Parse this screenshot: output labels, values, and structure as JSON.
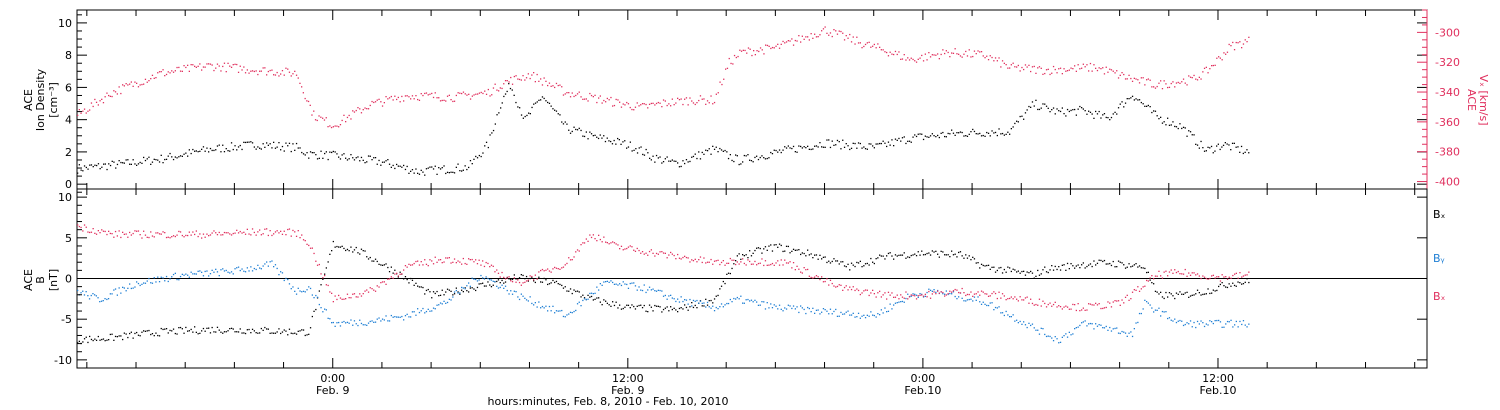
{
  "colors": {
    "black": "#000000",
    "pink": "#e0305e",
    "blue": "#1f7fd4"
  },
  "x_axis": {
    "label": "hours:minutes, Feb.  8, 2010 - Feb. 10, 2010",
    "ticks": [
      {
        "time": "0:00",
        "date": "Feb. 9",
        "hour": 24
      },
      {
        "time": "12:00",
        "date": "Feb. 9",
        "hour": 36
      },
      {
        "time": "0:00",
        "date": "Feb.10",
        "hour": 48
      },
      {
        "time": "12:00",
        "date": "Feb.10",
        "hour": 60
      }
    ]
  },
  "chart_data": [
    {
      "type": "scatter",
      "panel": "top",
      "ylabel_lines": [
        "ACE",
        "Ion Density",
        "[cm⁻³]"
      ],
      "y2label_lines": [
        "ACE",
        "Vₓ [km/s]"
      ],
      "xlim_hours": [
        13.6,
        68.5
      ],
      "ylim": [
        -0.3,
        10.8
      ],
      "yticks": [
        0,
        2,
        4,
        6,
        8,
        10
      ],
      "y2lim": [
        -405,
        -285
      ],
      "y2ticks": [
        -400,
        -380,
        -360,
        -340,
        -320,
        -300
      ],
      "series": [
        {
          "axis": "left",
          "color": "black",
          "x": [
            13.6,
            15.5,
            17,
            19,
            21,
            22.5,
            23,
            24,
            26,
            27.5,
            29.5,
            30.3,
            30.8,
            31.2,
            31.8,
            32.5,
            33.5,
            34.5,
            35.7,
            36.3,
            37,
            38,
            39.5,
            40.5,
            42,
            43,
            44,
            46,
            47.5,
            49.5,
            51.5,
            52.5,
            53.5,
            54.5,
            55.5,
            56.5,
            57.5,
            58.5,
            59.5,
            60.2,
            61.3
          ],
          "values": [
            1.0,
            1.3,
            1.6,
            2.2,
            2.5,
            2.3,
            1.9,
            1.8,
            1.4,
            0.8,
            1.1,
            2.5,
            5.0,
            6.2,
            4.0,
            5.5,
            3.5,
            3.0,
            2.6,
            2.3,
            1.7,
            1.3,
            2.2,
            1.5,
            2.0,
            2.3,
            2.6,
            2.3,
            2.9,
            3.2,
            3.3,
            5.0,
            4.5,
            4.6,
            4.1,
            5.6,
            4.2,
            3.6,
            2.1,
            2.5,
            2.0
          ]
        },
        {
          "axis": "right",
          "color": "pink",
          "x": [
            13.6,
            15,
            17,
            19,
            21,
            22.5,
            23.2,
            24,
            25.5,
            27,
            29,
            30.3,
            31,
            32,
            33.5,
            35,
            36.5,
            37.5,
            38.5,
            39.5,
            40.1,
            40.6,
            42,
            44,
            45.5,
            46.5,
            47.5,
            49,
            50.5,
            51.5,
            53,
            55,
            56.5,
            57.5,
            59,
            59.5,
            60.5,
            61.3
          ],
          "values": [
            -355,
            -340,
            -327,
            -322,
            -325,
            -327,
            -355,
            -362,
            -348,
            -342,
            -343,
            -340,
            -333,
            -328,
            -340,
            -345,
            -350,
            -347,
            -345,
            -345,
            -320,
            -313,
            -310,
            -298,
            -307,
            -312,
            -318,
            -313,
            -315,
            -323,
            -325,
            -323,
            -331,
            -335,
            -331,
            -326,
            -309,
            -305
          ]
        }
      ]
    },
    {
      "type": "scatter",
      "panel": "bottom",
      "ylabel_lines": [
        "ACE",
        "B",
        "[nT]"
      ],
      "xlim_hours": [
        13.6,
        68.5
      ],
      "ylim": [
        -11,
        11
      ],
      "yticks": [
        -10,
        -5,
        0,
        5,
        10
      ],
      "zero_line": true,
      "series": [
        {
          "name": "Bₓ",
          "color": "black",
          "x": [
            13.6,
            15,
            17,
            19,
            21,
            22.5,
            23,
            24,
            25,
            26.5,
            28,
            29,
            30.5,
            31.5,
            33,
            34.5,
            36,
            38,
            39.5,
            40.5,
            42,
            43.5,
            45,
            46.5,
            48,
            49.5,
            50.5,
            52.5,
            53,
            54.5,
            55.5,
            57,
            57.5,
            58.5,
            59.5,
            60.5,
            61.3
          ],
          "values": [
            -7.5,
            -7.2,
            -6.5,
            -6.2,
            -6.3,
            -6.5,
            -6.5,
            4.3,
            3.5,
            1,
            -2,
            -1.5,
            -0.5,
            0.2,
            -0.5,
            -2.5,
            -3.5,
            -3.8,
            -2.5,
            2.8,
            4.0,
            3.0,
            1.5,
            2.8,
            3.2,
            3,
            1.5,
            0.5,
            1.2,
            1.8,
            2.0,
            1.5,
            -2.0,
            -2.0,
            -1.5,
            -0.5,
            -0.3
          ]
        },
        {
          "name": "Bᵧ",
          "color": "blue",
          "x": [
            13.6,
            14.5,
            16,
            18,
            20,
            21.5,
            22.5,
            23,
            24,
            25.5,
            27,
            28.5,
            30,
            31.5,
            33.5,
            35,
            36.5,
            38,
            39.5,
            40.5,
            42,
            44,
            46,
            47.5,
            48.5,
            50.5,
            52.5,
            53.5,
            54.5,
            55.5,
            56.5,
            57,
            58.5,
            60,
            61.3
          ],
          "values": [
            -1.5,
            -2.5,
            -0.5,
            0.5,
            1,
            1.8,
            -1.5,
            -1.0,
            -5.5,
            -5.2,
            -4.5,
            -3.0,
            0.5,
            -2.0,
            -4.5,
            -0.5,
            -1.0,
            -2.5,
            -3.5,
            -2.5,
            -3.5,
            -4.0,
            -4.5,
            -2.0,
            -1.5,
            -2.8,
            -6.0,
            -7.5,
            -5.5,
            -6.0,
            -6.8,
            -3.0,
            -5.5,
            -5.5,
            -5.5
          ]
        },
        {
          "name": "Bₓ",
          "color": "pink",
          "x": [
            13.6,
            15,
            17,
            19,
            21,
            22.5,
            23,
            24,
            25.5,
            27,
            28.5,
            30,
            31.5,
            33.5,
            34.5,
            35.5,
            37.5,
            39.5,
            41,
            42.5,
            44.5,
            46.5,
            48,
            49.5,
            51,
            53,
            54.5,
            56,
            57.5,
            58.5,
            60,
            61.3
          ],
          "values": [
            6.5,
            5.5,
            5.5,
            5.5,
            5.8,
            5.7,
            4.5,
            -2.5,
            -1.5,
            1.5,
            2.5,
            2.0,
            -0.5,
            2.0,
            5.5,
            4.0,
            3.0,
            2.0,
            2.2,
            2.0,
            -1.0,
            -2.0,
            -2.0,
            -1.5,
            -2.0,
            -3.0,
            -3.5,
            -3.0,
            0.5,
            0.8,
            0.2,
            0.5
          ]
        }
      ],
      "legend": {
        "placement": "right",
        "entries": [
          "Bₓ",
          "Bᵧ",
          "Bₓ"
        ]
      }
    }
  ]
}
